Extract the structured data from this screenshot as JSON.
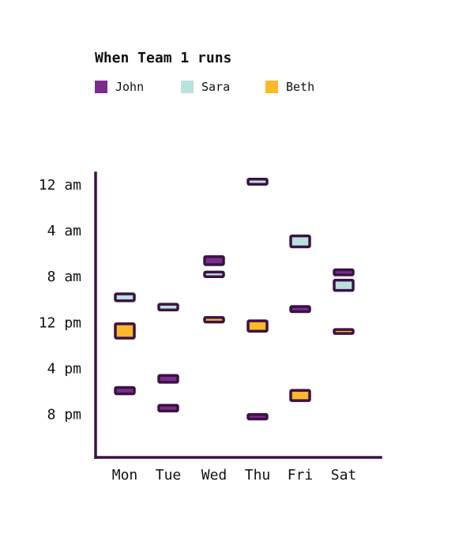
{
  "chart_data": {
    "type": "range-bar",
    "title": "When Team 1 runs",
    "categories": [
      "Mon",
      "Tue",
      "Wed",
      "Thu",
      "Fri",
      "Sat"
    ],
    "y_ticks": [
      {
        "label": "12 am",
        "hour": 0
      },
      {
        "label": "4 am",
        "hour": 4
      },
      {
        "label": "8 am",
        "hour": 8
      },
      {
        "label": "12 pm",
        "hour": 12
      },
      {
        "label": "4 pm",
        "hour": 16
      },
      {
        "label": "8 pm",
        "hour": 20
      }
    ],
    "ylim": [
      -1,
      24
    ],
    "y_inverted": true,
    "grid": false,
    "legend_position": "top-left",
    "axis_color": "#3b1245",
    "series": [
      {
        "name": "John",
        "color": "#7b2d8e",
        "runs": [
          {
            "day": "Mon",
            "start": 17.65,
            "end": 18.2
          },
          {
            "day": "Tue",
            "start": 16.6,
            "end": 17.2
          },
          {
            "day": "Tue",
            "start": 19.2,
            "end": 19.7
          },
          {
            "day": "Wed",
            "start": 6.25,
            "end": 6.95
          },
          {
            "day": "Thu",
            "start": 20.0,
            "end": 20.4
          },
          {
            "day": "Fri",
            "start": 10.6,
            "end": 11.05
          },
          {
            "day": "Sat",
            "start": 7.4,
            "end": 7.85
          }
        ]
      },
      {
        "name": "Sara",
        "color": "#b9e2dc",
        "runs": [
          {
            "day": "Mon",
            "start": 9.5,
            "end": 10.1
          },
          {
            "day": "Tue",
            "start": 10.4,
            "end": 10.9
          },
          {
            "day": "Wed",
            "start": 7.6,
            "end": 8.0
          },
          {
            "day": "Thu",
            "start": -0.5,
            "end": -0.05
          },
          {
            "day": "Fri",
            "start": 4.45,
            "end": 5.4
          },
          {
            "day": "Sat",
            "start": 8.3,
            "end": 9.2
          }
        ]
      },
      {
        "name": "Beth",
        "color": "#fbb829",
        "runs": [
          {
            "day": "Mon",
            "start": 12.1,
            "end": 13.35
          },
          {
            "day": "Wed",
            "start": 11.55,
            "end": 11.95
          },
          {
            "day": "Thu",
            "start": 11.85,
            "end": 12.75
          },
          {
            "day": "Fri",
            "start": 17.9,
            "end": 18.8
          },
          {
            "day": "Sat",
            "start": 12.6,
            "end": 12.95
          }
        ]
      }
    ]
  }
}
